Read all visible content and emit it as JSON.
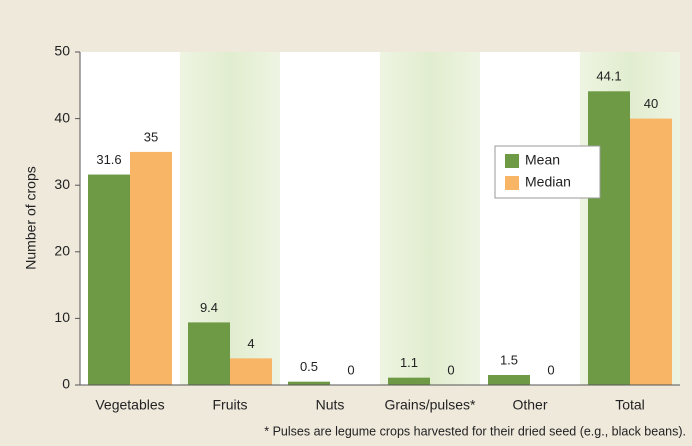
{
  "chart_data": {
    "type": "bar",
    "y_label": "Number of crops",
    "categories": [
      "Vegetables",
      "Fruits",
      "Nuts",
      "Grains/pulses*",
      "Other",
      "Total"
    ],
    "series": [
      {
        "name": "Mean",
        "color": "#6e9a45",
        "values": [
          31.6,
          9.4,
          0.5,
          1.1,
          1.5,
          44.1
        ]
      },
      {
        "name": "Median",
        "color": "#f8b565",
        "values": [
          35,
          4,
          0,
          0,
          0,
          40
        ]
      }
    ],
    "ylim": [
      0,
      50
    ],
    "yticks": [
      0,
      10,
      20,
      30,
      40,
      50
    ],
    "legend": "upper right",
    "footnote": "* Pulses are legume crops harvested for their dried seed (e.g., black beans)."
  }
}
